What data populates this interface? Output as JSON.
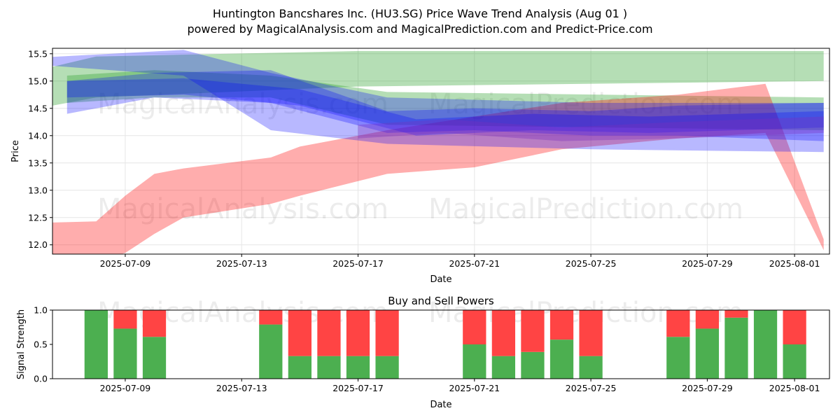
{
  "title_line1": "Huntington Bancshares Inc. (HU3.SG) Price Wave Trend Analysis (Aug 01 )",
  "title_line2": "powered by MagicalAnalysis.com and MagicalPrediction.com and Predict-Price.com",
  "watermarks": [
    "MagicalAnalysis.com",
    "MagicalPrediction.com"
  ],
  "colors": {
    "green_band": "#2ca02c",
    "red_band": "#ff0000",
    "blue_band": "#0000ff",
    "buy": "#4caf50",
    "sell": "#ff4444"
  },
  "chart_data": [
    {
      "type": "area",
      "xlabel": "Date",
      "ylabel": "Price",
      "x_ticks": [
        "2025-07-09",
        "2025-07-13",
        "2025-07-17",
        "2025-07-21",
        "2025-07-25",
        "2025-07-29",
        "2025-08-01"
      ],
      "y_ticks": [
        "12.0",
        "12.5",
        "13.0",
        "13.5",
        "14.0",
        "14.5",
        "15.0",
        "15.5"
      ],
      "xlim": [
        "2025-07-06",
        "2025-08-02"
      ],
      "ylim": [
        11.83,
        15.6
      ],
      "grid": true,
      "series": [
        {
          "color": "green",
          "x": [
            "2025-07-06",
            "2025-07-08",
            "2025-07-17",
            "2025-08-02"
          ],
          "upper": [
            15.2,
            15.45,
            15.55,
            15.55
          ],
          "lower": [
            14.5,
            14.7,
            14.9,
            15.0
          ]
        },
        {
          "color": "green",
          "x": [
            "2025-07-07",
            "2025-07-10",
            "2025-07-14",
            "2025-07-18",
            "2025-08-02"
          ],
          "upper": [
            15.1,
            15.2,
            15.1,
            14.8,
            14.7
          ],
          "lower": [
            14.6,
            14.7,
            14.7,
            14.2,
            14.1
          ]
        },
        {
          "color": "red",
          "x": [
            "2025-07-06",
            "2025-07-08",
            "2025-07-09",
            "2025-07-10",
            "2025-07-11",
            "2025-07-14",
            "2025-07-15",
            "2025-07-18",
            "2025-07-21",
            "2025-07-24",
            "2025-07-28",
            "2025-07-31",
            "2025-08-02"
          ],
          "upper": [
            12.4,
            12.43,
            12.9,
            13.3,
            13.4,
            13.6,
            13.8,
            14.1,
            14.35,
            14.6,
            14.75,
            14.95,
            12.1
          ],
          "lower": [
            11.83,
            11.7,
            11.85,
            12.2,
            12.5,
            12.75,
            12.9,
            13.3,
            13.42,
            13.75,
            13.95,
            14.05,
            11.9
          ]
        },
        {
          "color": "blue",
          "x": [
            "2025-07-06",
            "2025-07-11",
            "2025-07-14",
            "2025-07-18",
            "2025-07-25",
            "2025-08-02"
          ],
          "upper": [
            15.43,
            15.57,
            15.15,
            14.7,
            14.6,
            14.6
          ],
          "lower": [
            15.3,
            15.1,
            14.1,
            13.85,
            13.75,
            13.7
          ]
        },
        {
          "color": "blue",
          "x": [
            "2025-07-07",
            "2025-07-10",
            "2025-07-14",
            "2025-07-18",
            "2025-07-21",
            "2025-07-25",
            "2025-07-28",
            "2025-08-02"
          ],
          "upper": [
            15.0,
            15.15,
            15.2,
            14.45,
            14.5,
            14.45,
            14.55,
            14.6
          ],
          "lower": [
            14.4,
            14.7,
            14.6,
            14.05,
            14.1,
            14.0,
            14.0,
            13.9
          ]
        },
        {
          "color": "blue",
          "x": [
            "2025-07-07",
            "2025-07-11",
            "2025-07-15",
            "2025-07-19",
            "2025-07-23",
            "2025-07-27",
            "2025-08-02"
          ],
          "upper": [
            15.0,
            15.05,
            14.85,
            14.3,
            14.4,
            14.35,
            14.45
          ],
          "lower": [
            14.7,
            14.75,
            14.55,
            14.0,
            14.1,
            14.05,
            14.15
          ]
        },
        {
          "color": "purple",
          "x": [
            "2025-07-17",
            "2025-07-20",
            "2025-07-24",
            "2025-07-28",
            "2025-08-02"
          ],
          "upper": [
            14.2,
            14.3,
            14.15,
            14.25,
            14.35
          ],
          "lower": [
            13.95,
            14.05,
            13.9,
            13.95,
            14.05
          ]
        }
      ]
    },
    {
      "type": "bar",
      "title": "Buy and Sell Powers",
      "xlabel": "Date",
      "ylabel": "Signal Strength",
      "x_ticks": [
        "2025-07-09",
        "2025-07-13",
        "2025-07-17",
        "2025-07-21",
        "2025-07-25",
        "2025-07-29",
        "2025-08-01"
      ],
      "y_ticks": [
        "0.0",
        "0.5",
        "1.0"
      ],
      "ylim": [
        0,
        1
      ],
      "categories": [
        "2025-07-08",
        "2025-07-09",
        "2025-07-10",
        "2025-07-14",
        "2025-07-15",
        "2025-07-16",
        "2025-07-17",
        "2025-07-18",
        "2025-07-21",
        "2025-07-22",
        "2025-07-23",
        "2025-07-24",
        "2025-07-25",
        "2025-07-28",
        "2025-07-29",
        "2025-07-30",
        "2025-07-31",
        "2025-08-01"
      ],
      "series": [
        {
          "name": "Buy",
          "values": [
            1.0,
            0.73,
            0.61,
            0.79,
            0.33,
            0.33,
            0.33,
            0.33,
            0.5,
            0.33,
            0.39,
            0.57,
            0.33,
            0.61,
            0.73,
            0.89,
            1.0,
            0.5
          ]
        },
        {
          "name": "Sell",
          "values": [
            0.0,
            0.27,
            0.39,
            0.21,
            0.67,
            0.67,
            0.67,
            0.67,
            0.5,
            0.67,
            0.61,
            0.43,
            0.67,
            0.39,
            0.27,
            0.11,
            0.0,
            0.5
          ]
        }
      ]
    }
  ]
}
